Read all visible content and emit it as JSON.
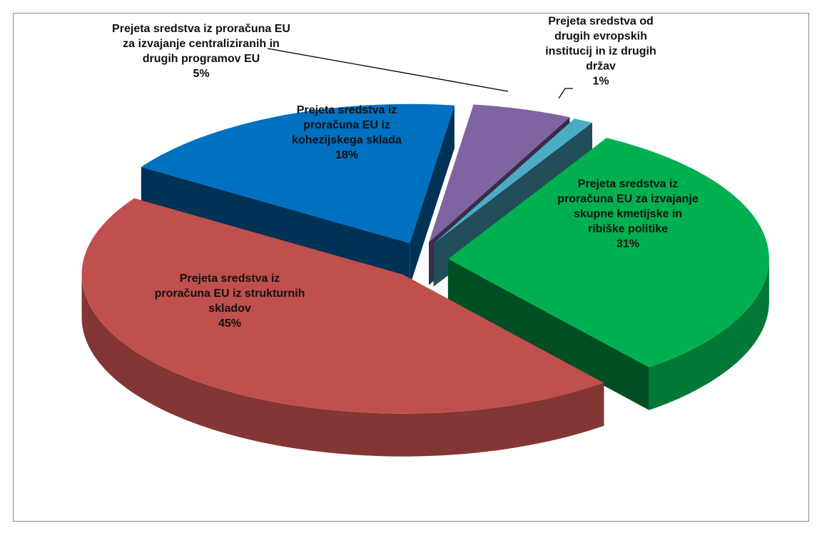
{
  "chart_data": {
    "type": "pie3d",
    "categories": [
      "Prejeta sredstva iz proračuna EU za izvajanje centraliziranih in drugih programov EU",
      "Prejeta sredstva od drugih evropskih institucij in iz drugih držav",
      "Prejeta sredstva iz proračuna EU za izvajanje skupne kmetijske in ribiške politike",
      "Prejeta sredstva iz proračuna EU iz strukturnih skladov",
      "Prejeta sredstva iz proračuna EU iz kohezijskega sklada"
    ],
    "values": [
      5,
      1,
      31,
      45,
      18
    ],
    "value_labels": [
      "5%",
      "1%",
      "31%",
      "45%",
      "18%"
    ],
    "colors": [
      "#8064a2",
      "#4bacc6",
      "#00b050",
      "#c0504d",
      "#0070c0"
    ]
  }
}
